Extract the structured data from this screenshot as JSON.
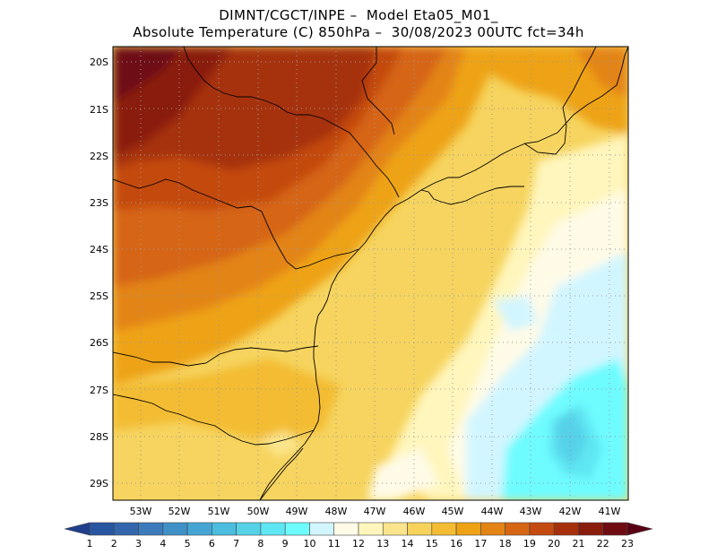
{
  "header": {
    "line1": "DIMNT/CGCT/INPE –  Model Eta05_M01_",
    "line2": "Absolute Temperature (C) 850hPa –  30/08/2023 00UTC fct=34h"
  },
  "map": {
    "lat_labels": [
      "20S",
      "21S",
      "22S",
      "23S",
      "24S",
      "25S",
      "26S",
      "27S",
      "28S",
      "29S"
    ],
    "lon_labels": [
      "53W",
      "52W",
      "51W",
      "50W",
      "49W",
      "48W",
      "47W",
      "46W",
      "45W",
      "44W",
      "43W",
      "42W",
      "41W"
    ]
  },
  "colorbar": {
    "labels": [
      "1",
      "2",
      "3",
      "4",
      "5",
      "6",
      "7",
      "8",
      "9",
      "10",
      "11",
      "12",
      "13",
      "14",
      "15",
      "16",
      "17",
      "18",
      "19",
      "20",
      "21",
      "22",
      "23"
    ],
    "colors": [
      "#1f3e8c",
      "#2956a0",
      "#3366ad",
      "#3b7bbb",
      "#4090c8",
      "#45a6d6",
      "#4cbcdf",
      "#56d2e8",
      "#5fe6f3",
      "#6efcff",
      "#d2f6ff",
      "#fffbe7",
      "#fff6bd",
      "#fbe58c",
      "#f7d35c",
      "#f3bc33",
      "#eea315",
      "#e38414",
      "#d66514",
      "#c44a10",
      "#a6300b",
      "#8a1c0b",
      "#6e0c12",
      "#5a0014"
    ]
  }
}
